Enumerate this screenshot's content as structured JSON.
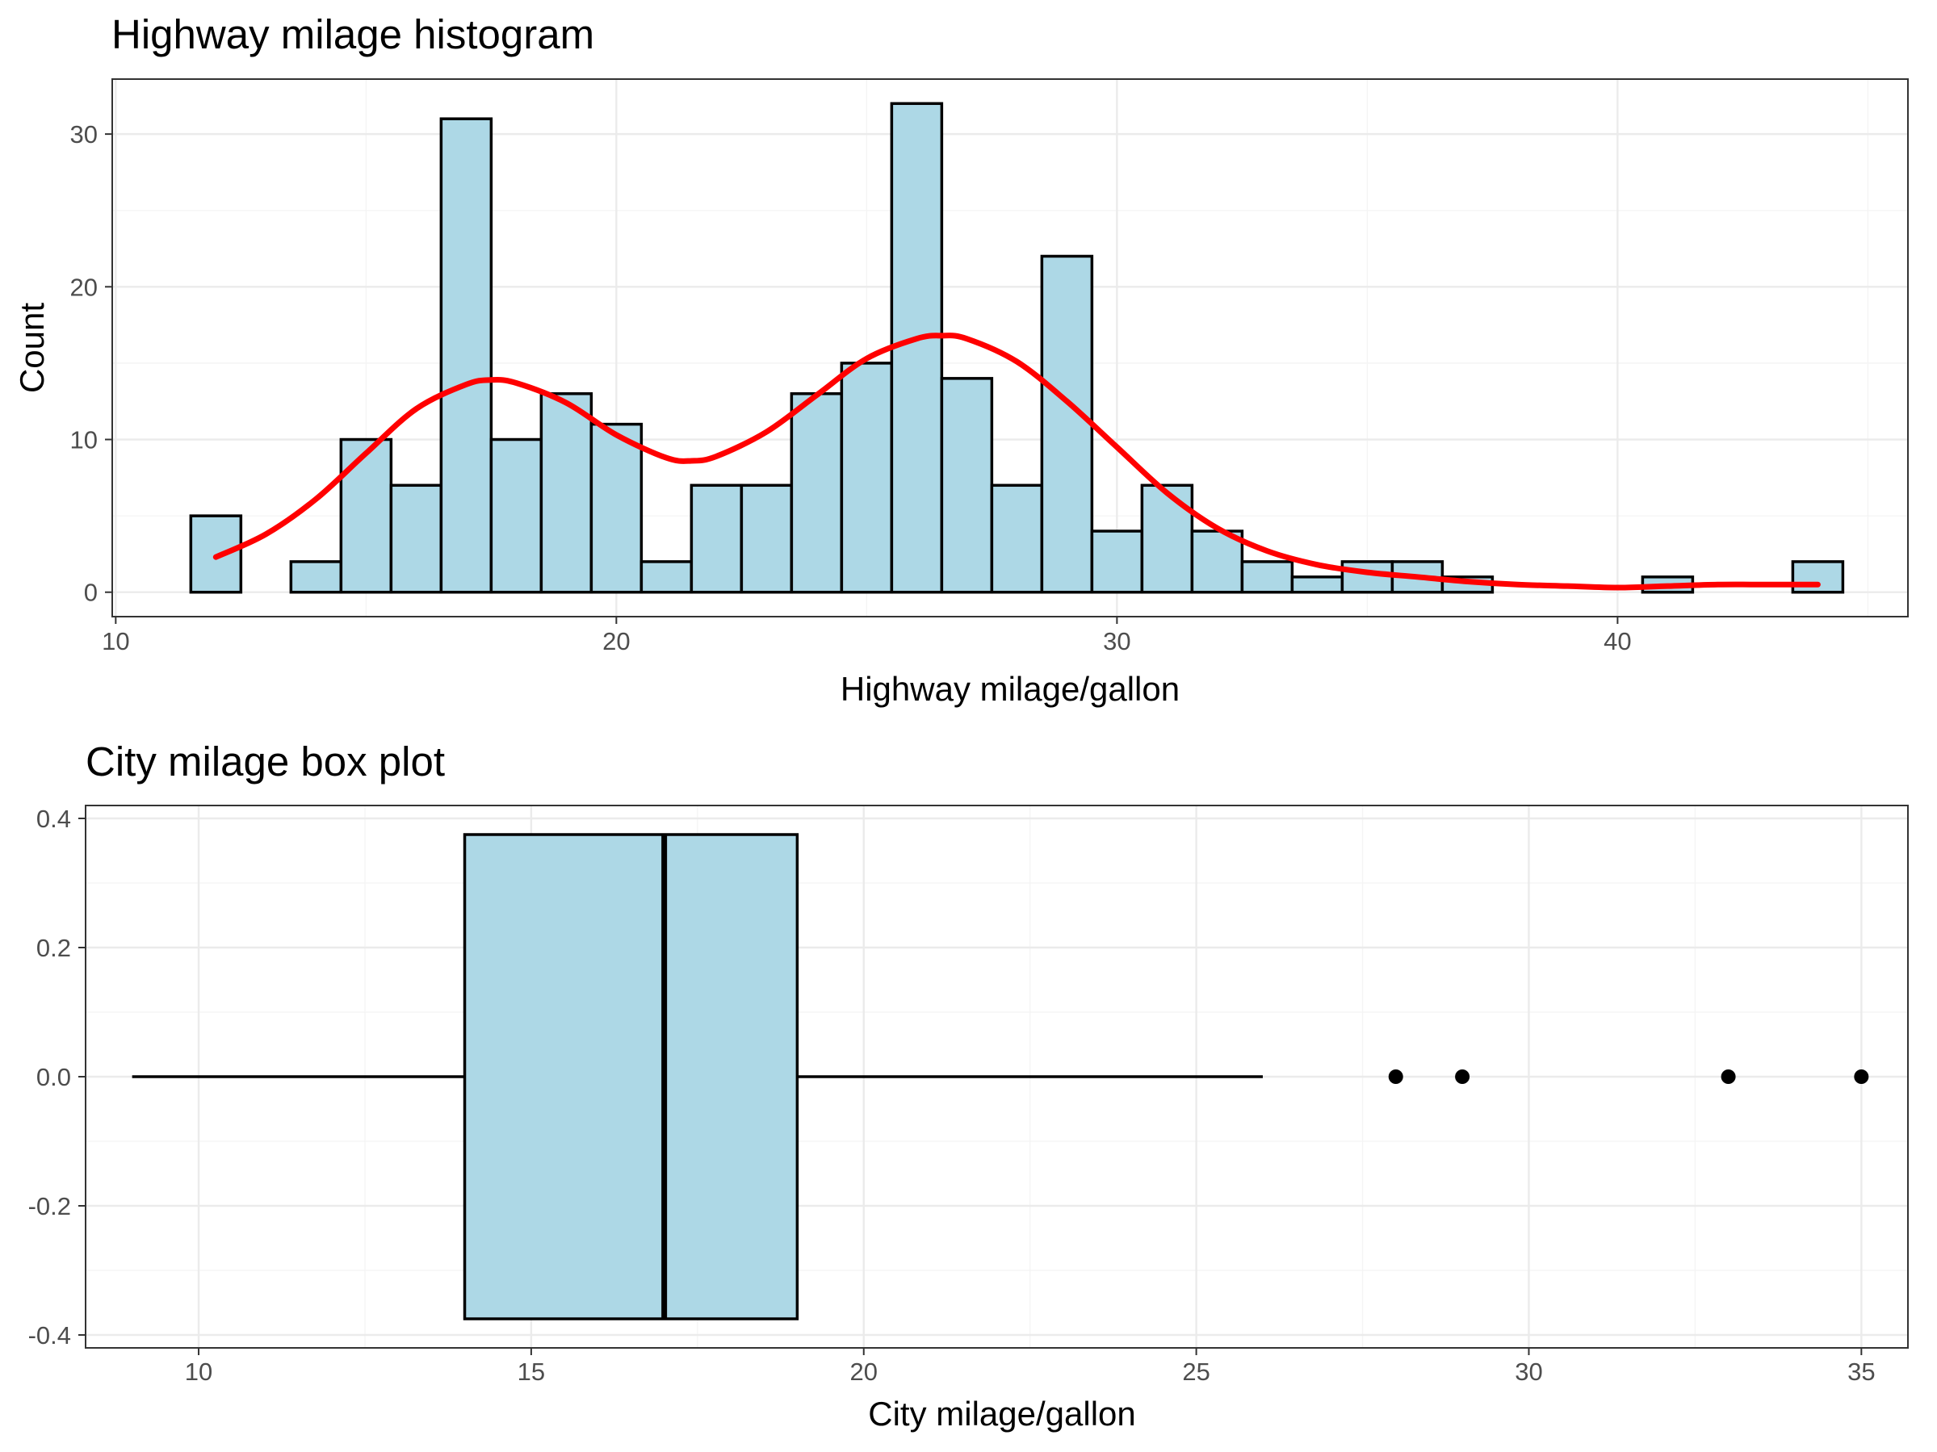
{
  "chart_data": [
    {
      "type": "bar",
      "title": "Highway milage histogram",
      "xlabel": "Highway milage/gallon",
      "ylabel": "Count",
      "xlim": [
        9.93,
        45.8
      ],
      "ylim": [
        -1.6,
        33.6
      ],
      "x_ticks": [
        10,
        20,
        30,
        40
      ],
      "y_ticks": [
        0,
        10,
        20,
        30
      ],
      "grid": true,
      "bin_width": 1,
      "bins": [
        {
          "x": 12,
          "count": 5
        },
        {
          "x": 13,
          "count": 0
        },
        {
          "x": 14,
          "count": 2
        },
        {
          "x": 15,
          "count": 10
        },
        {
          "x": 16,
          "count": 7
        },
        {
          "x": 17,
          "count": 31
        },
        {
          "x": 18,
          "count": 10
        },
        {
          "x": 19,
          "count": 13
        },
        {
          "x": 20,
          "count": 11
        },
        {
          "x": 21,
          "count": 2
        },
        {
          "x": 22,
          "count": 7
        },
        {
          "x": 23,
          "count": 7
        },
        {
          "x": 24,
          "count": 13
        },
        {
          "x": 25,
          "count": 15
        },
        {
          "x": 26,
          "count": 32
        },
        {
          "x": 27,
          "count": 14
        },
        {
          "x": 28,
          "count": 7
        },
        {
          "x": 29,
          "count": 22
        },
        {
          "x": 30,
          "count": 4
        },
        {
          "x": 31,
          "count": 7
        },
        {
          "x": 32,
          "count": 4
        },
        {
          "x": 33,
          "count": 2
        },
        {
          "x": 34,
          "count": 1
        },
        {
          "x": 35,
          "count": 2
        },
        {
          "x": 36,
          "count": 2
        },
        {
          "x": 37,
          "count": 1
        },
        {
          "x": 38,
          "count": 0
        },
        {
          "x": 39,
          "count": 0
        },
        {
          "x": 40,
          "count": 0
        },
        {
          "x": 41,
          "count": 1
        },
        {
          "x": 42,
          "count": 0
        },
        {
          "x": 43,
          "count": 0
        },
        {
          "x": 44,
          "count": 2
        }
      ],
      "density_curve": {
        "x": [
          12,
          13,
          14,
          15,
          16,
          17,
          17.5,
          18,
          19,
          20,
          21,
          21.5,
          22,
          23,
          24,
          25,
          26,
          26.5,
          27,
          28,
          29,
          30,
          31,
          32,
          33,
          34,
          35,
          36,
          37,
          38,
          39,
          40,
          41,
          42,
          43,
          44
        ],
        "y": [
          2.3,
          3.8,
          6.1,
          9.1,
          12.0,
          13.6,
          13.9,
          13.7,
          12.4,
          10.3,
          8.8,
          8.6,
          8.9,
          10.5,
          12.9,
          15.3,
          16.6,
          16.8,
          16.6,
          15.1,
          12.5,
          9.5,
          6.5,
          4.2,
          2.7,
          1.8,
          1.3,
          1.0,
          0.7,
          0.5,
          0.4,
          0.3,
          0.4,
          0.5,
          0.5,
          0.5
        ],
        "color": "#ff0000"
      },
      "bar_fill": "#add8e6",
      "bar_outline": "#000000"
    },
    {
      "type": "box",
      "title": "City milage box plot",
      "xlabel": "City milage/gallon",
      "ylabel": "",
      "xlim": [
        8.3,
        35.7
      ],
      "ylim": [
        -0.42,
        0.42
      ],
      "x_ticks": [
        10,
        15,
        20,
        25,
        30,
        35
      ],
      "y_ticks": [
        -0.4,
        -0.2,
        0.0,
        0.2,
        0.4
      ],
      "y_tick_labels": [
        "-0.4",
        "-0.2",
        "0.0",
        "0.2",
        "0.4"
      ],
      "grid": true,
      "box": {
        "min": 9,
        "q1": 14,
        "median": 17,
        "q3": 19,
        "max": 26,
        "half_width": 0.375
      },
      "outliers": [
        28,
        29,
        33,
        35
      ],
      "box_fill": "#add8e6",
      "box_outline": "#000000"
    }
  ]
}
